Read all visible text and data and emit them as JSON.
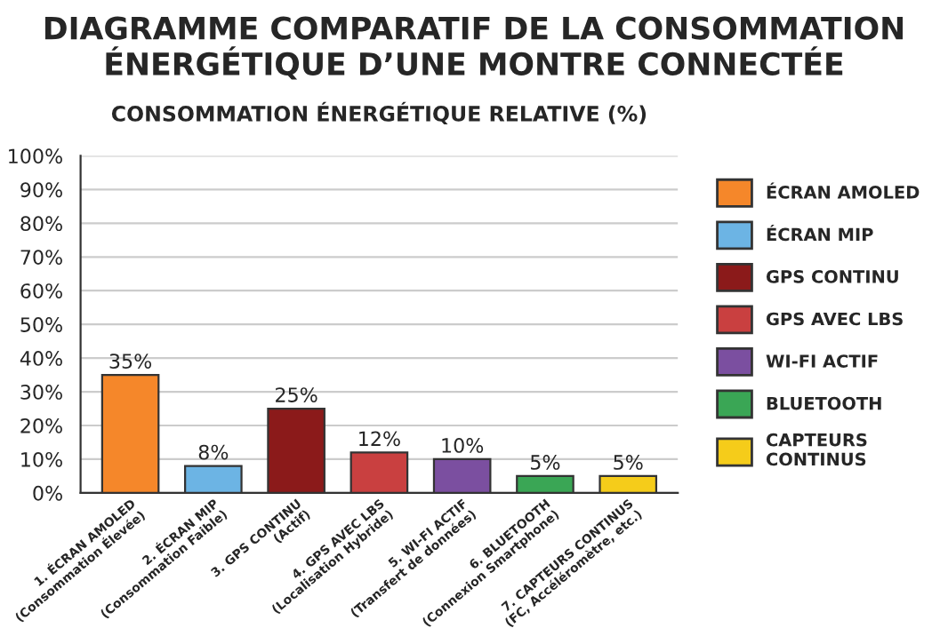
{
  "chart_data": {
    "type": "bar",
    "title": "DIAGRAMME COMPARATIF DE LA CONSOMMATION\nÉNERGÉTIQUE D’UNE MONTRE CONNECTÉE",
    "subtitle": "CONSOMMATION ÉNERGÉTIQUE RELATIVE (%)",
    "categories": [
      "1. ÉCRAN AMOLED\n(Consommation Élevée)",
      "2. ÉCRAN MIP\n(Consommation Faible)",
      "3. GPS CONTINU\n(Actif)",
      "4. GPS AVEC LBS\n(Localisation Hybride)",
      "5. WI-FI ACTIF\n(Transfert de données)",
      "6. BLUETOOTH\n(Connexion Smartphone)",
      "7. CAPTEURS CONTINUS\n(FC, Accéléromètre, etc.)"
    ],
    "series": [
      {
        "name": "ÉCRAN AMOLED",
        "color": "#f5872a",
        "values": [
          35,
          null,
          null,
          null,
          null,
          null,
          null
        ],
        "value_labels": [
          "35%",
          null,
          null,
          null,
          null,
          null,
          null
        ]
      },
      {
        "name": "ÉCRAN MIP",
        "color": "#6cb4e4",
        "values": [
          null,
          8,
          null,
          null,
          null,
          null,
          null
        ],
        "value_labels": [
          null,
          "8%",
          null,
          null,
          null,
          null,
          null
        ]
      },
      {
        "name": "GPS CONTINU",
        "color": "#8b1a1a",
        "values": [
          null,
          null,
          25,
          null,
          null,
          null,
          null
        ],
        "value_labels": [
          null,
          null,
          "25%",
          null,
          null,
          null,
          null
        ]
      },
      {
        "name": "GPS AVEC LBS",
        "color": "#c94040",
        "values": [
          null,
          null,
          null,
          12,
          null,
          null,
          null
        ],
        "value_labels": [
          null,
          null,
          null,
          "12%",
          null,
          null,
          null
        ]
      },
      {
        "name": "WI-FI ACTIF",
        "color": "#7b4fa0",
        "values": [
          null,
          null,
          null,
          null,
          10,
          null,
          null
        ],
        "value_labels": [
          null,
          null,
          null,
          null,
          "10%",
          null,
          null
        ]
      },
      {
        "name": "BLUETOOTH",
        "color": "#3aa655",
        "values": [
          null,
          null,
          null,
          null,
          null,
          5,
          null
        ],
        "value_labels": [
          null,
          null,
          null,
          null,
          null,
          "5%",
          null
        ]
      },
      {
        "name": "CAPTEURS\nCONTINUS",
        "color": "#f5cc1a",
        "values": [
          null,
          null,
          null,
          null,
          null,
          null,
          5
        ],
        "value_labels": [
          null,
          null,
          null,
          null,
          null,
          null,
          "5%"
        ]
      }
    ],
    "ylim": [
      0,
      100
    ],
    "yticks": [
      {
        "value": 0,
        "label": "0%"
      },
      {
        "value": 10,
        "label": "10%"
      },
      {
        "value": 20,
        "label": "20%"
      },
      {
        "value": 30,
        "label": "30%"
      },
      {
        "value": 40,
        "label": "40%"
      },
      {
        "value": 50,
        "label": "50%"
      },
      {
        "value": 60,
        "label": "60%"
      },
      {
        "value": 70,
        "label": "70%"
      },
      {
        "value": 80,
        "label": "80%"
      },
      {
        "value": 90,
        "label": "90%"
      },
      {
        "value": 100,
        "label": "100%"
      }
    ],
    "grid": "y",
    "legend": "right"
  }
}
